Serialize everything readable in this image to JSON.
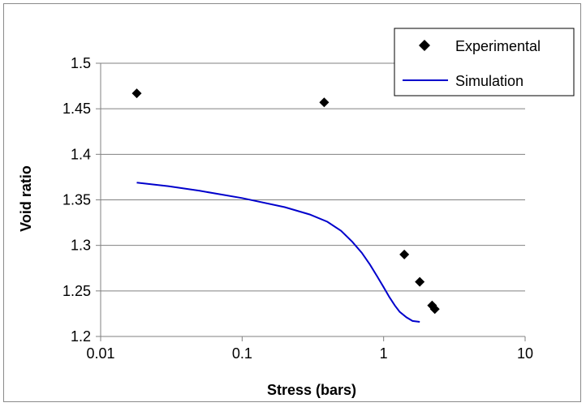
{
  "chart_data": {
    "type": "scatter",
    "xlabel": "Stress (bars)",
    "ylabel": "Void ratio",
    "x_scale": "log",
    "xlim": [
      0.01,
      10
    ],
    "ylim": [
      1.2,
      1.5
    ],
    "x_ticks": [
      0.01,
      0.1,
      1,
      10
    ],
    "x_tick_labels": [
      "0.01",
      "0.1",
      "1",
      "10"
    ],
    "y_ticks": [
      1.2,
      1.25,
      1.3,
      1.35,
      1.4,
      1.45,
      1.5
    ],
    "y_tick_labels": [
      "1.2",
      "1.25",
      "1.3",
      "1.35",
      "1.4",
      "1.45",
      "1.5"
    ],
    "grid": "horizontal",
    "legend_position": "top-right",
    "series": [
      {
        "name": "Experimental",
        "kind": "scatter",
        "marker": "diamond",
        "color": "#000000",
        "points": [
          {
            "x": 0.018,
            "y": 1.467
          },
          {
            "x": 0.38,
            "y": 1.457
          },
          {
            "x": 1.4,
            "y": 1.29
          },
          {
            "x": 1.8,
            "y": 1.26
          },
          {
            "x": 2.2,
            "y": 1.234
          },
          {
            "x": 2.3,
            "y": 1.23
          }
        ]
      },
      {
        "name": "Simulation",
        "kind": "line",
        "color": "#0000cc",
        "points": [
          {
            "x": 0.018,
            "y": 1.369
          },
          {
            "x": 0.03,
            "y": 1.365
          },
          {
            "x": 0.05,
            "y": 1.36
          },
          {
            "x": 0.1,
            "y": 1.352
          },
          {
            "x": 0.2,
            "y": 1.342
          },
          {
            "x": 0.3,
            "y": 1.334
          },
          {
            "x": 0.4,
            "y": 1.326
          },
          {
            "x": 0.5,
            "y": 1.316
          },
          {
            "x": 0.6,
            "y": 1.304
          },
          {
            "x": 0.7,
            "y": 1.292
          },
          {
            "x": 0.8,
            "y": 1.279
          },
          {
            "x": 0.9,
            "y": 1.266
          },
          {
            "x": 1.0,
            "y": 1.254
          },
          {
            "x": 1.1,
            "y": 1.243
          },
          {
            "x": 1.2,
            "y": 1.234
          },
          {
            "x": 1.3,
            "y": 1.227
          },
          {
            "x": 1.45,
            "y": 1.221
          },
          {
            "x": 1.6,
            "y": 1.217
          },
          {
            "x": 1.8,
            "y": 1.216
          }
        ]
      }
    ]
  }
}
